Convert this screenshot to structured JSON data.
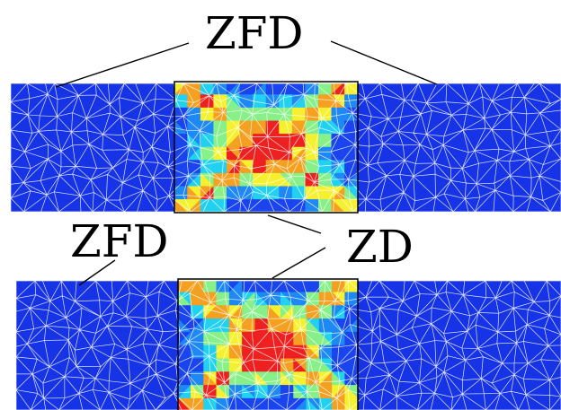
{
  "labels": {
    "top_zfd": "ZFD",
    "bottom_zfd": "ZFD",
    "zd": "ZD"
  },
  "colors": {
    "background": "#ffffff",
    "mesh_base": "#1633e6",
    "mesh_lines": "#ffffff",
    "leader_lines": "#000000",
    "damage_scale": [
      "#1a44ee",
      "#1e88f5",
      "#22d0f0",
      "#88f088",
      "#f5f030",
      "#f5a020",
      "#ee2020"
    ]
  }
}
